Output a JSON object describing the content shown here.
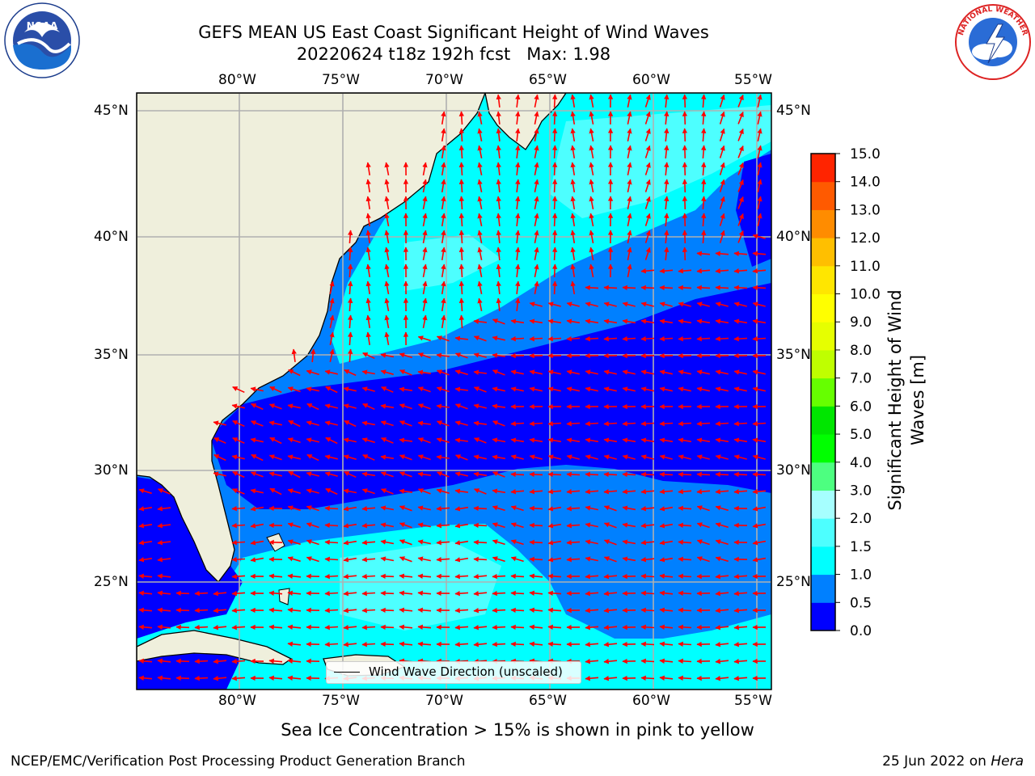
{
  "title": {
    "line1": "GEFS MEAN US East Coast Significant Height of Wind Waves",
    "line2": "20220624 t18z 192h fcst   Max: 1.98"
  },
  "logos": {
    "left": {
      "icon": "noaa-logo-icon",
      "text": "NOAA"
    },
    "right": {
      "icon": "nws-logo-icon",
      "text": "NATIONAL WEATHER SERVICE"
    }
  },
  "map": {
    "lon_ticks": [
      "80°W",
      "75°W",
      "70°W",
      "65°W",
      "60°W",
      "55°W"
    ],
    "lat_ticks": [
      "45°N",
      "40°N",
      "35°N",
      "30°N",
      "25°N"
    ],
    "extent": {
      "lon_min": -85,
      "lon_max": -54.2,
      "lat_min": 20.5,
      "lat_max": 45.8
    },
    "land_color": "#efefdc",
    "arrow_color": "#ff0000",
    "grid": true
  },
  "legend": {
    "label": "Wind Wave Direction (unscaled)"
  },
  "colorbar": {
    "label": "Significant Height of Wind\nWaves [m]",
    "label_line1": "Significant Height of Wind",
    "label_line2": "Waves [m]",
    "ticks": [
      "0.0",
      "0.5",
      "1.0",
      "1.5",
      "2.0",
      "3.0",
      "4.0",
      "5.0",
      "6.0",
      "7.0",
      "8.0",
      "9.0",
      "10.0",
      "11.0",
      "12.0",
      "13.0",
      "14.0",
      "15.0"
    ],
    "colors": [
      "#0000ff",
      "#0080ff",
      "#00ffff",
      "#4dffff",
      "#a6ffff",
      "#4dff80",
      "#00ff00",
      "#00e600",
      "#66ff00",
      "#bfff00",
      "#e6ff00",
      "#ffff00",
      "#ffe600",
      "#ffbf00",
      "#ff8c00",
      "#ff5a00",
      "#ff2400"
    ]
  },
  "chart_data": {
    "type": "heatmap",
    "title": "GEFS MEAN US East Coast Significant Height of Wind Waves",
    "subtitle": "20220624 t18z 192h fcst   Max: 1.98",
    "xlabel": "",
    "ylabel": "",
    "colorbar_label": "Significant Height of Wind Waves [m]",
    "max_value": 1.98,
    "units": "m"
  },
  "subnote": "Sea Ice Concentration > 15% is shown in pink to yellow",
  "footer": {
    "left": "NCEP/EMC/Verification Post Processing Product Generation Branch",
    "right_prefix": "25 Jun 2022 on ",
    "right_host": "Hera"
  }
}
